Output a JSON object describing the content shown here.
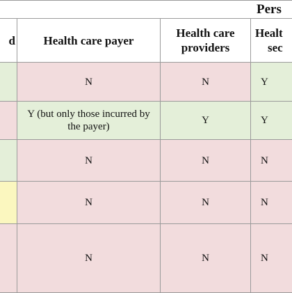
{
  "table": {
    "group_header": "Pers",
    "headers": [
      "d",
      "Health care payer",
      "Health care providers",
      "Healt sec"
    ],
    "header_lines": {
      "providers_line1": "Health care",
      "providers_line2": "providers",
      "col3_line1": "Healt",
      "col3_line2": "sec"
    },
    "rows": [
      {
        "cells": [
          "",
          "N",
          "N",
          "Y"
        ],
        "colors": [
          "#e4efd9",
          "#f2dcdd",
          "#f2dcdd",
          "#e4efd9"
        ]
      },
      {
        "cells": [
          "",
          "Y (but only those incurred by the payer)",
          "Y",
          "Y"
        ],
        "colors": [
          "#f2dcdd",
          "#e4efd9",
          "#e4efd9",
          "#e4efd9"
        ]
      },
      {
        "cells": [
          "",
          "N",
          "N",
          "N"
        ],
        "colors": [
          "#e4efd9",
          "#f2dcdd",
          "#f2dcdd",
          "#f2dcdd"
        ]
      },
      {
        "cells": [
          "",
          "N",
          "N",
          "N"
        ],
        "colors": [
          "#fbf7bf",
          "#f2dcdd",
          "#f2dcdd",
          "#f2dcdd"
        ]
      },
      {
        "cells": [
          "",
          "N",
          "N",
          "N"
        ],
        "colors": [
          "#f2dcdd",
          "#f2dcdd",
          "#f2dcdd",
          "#f2dcdd"
        ]
      }
    ]
  }
}
